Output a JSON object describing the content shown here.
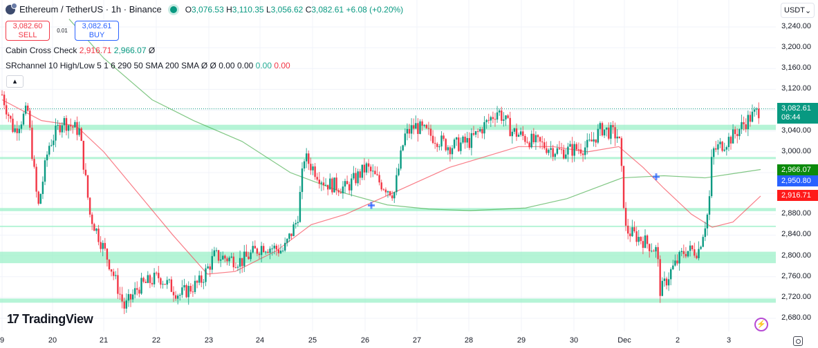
{
  "header": {
    "symbol": "Ethereum / TetherUS · 1h · Binance",
    "ohlc": {
      "open_label": "O",
      "open": "3,076.53",
      "high_label": "H",
      "high": "3,110.35",
      "low_label": "L",
      "low": "3,056.62",
      "close_label": "C",
      "close": "3,082.61",
      "change": "+6.08 (+0.20%)"
    }
  },
  "trade": {
    "sell_price": "3,082.60",
    "sell_label": "SELL",
    "spread": "0.01",
    "buy_price": "3,082.61",
    "buy_label": "BUY"
  },
  "indicators": {
    "cabin": {
      "name": "Cabin Cross Check",
      "v1": "2,916.71",
      "v2": "2,966.07",
      "v3": "Ø"
    },
    "srchannel": {
      "name": "SRchannel 10 High/Low 5 1 6 290 50 SMA 200 SMA",
      "n1": "Ø",
      "n2": "Ø",
      "v1": "0.00",
      "v2": "0.00",
      "v3": "0.00",
      "v4": "0.00"
    }
  },
  "collapse_icon": "▴",
  "currency": {
    "selected": "USDT",
    "icon": "⌄"
  },
  "price_axis": [
    "3,240.00",
    "3,200.00",
    "3,160.00",
    "3,120.00",
    "3,040.00",
    "3,000.00",
    "2,880.00",
    "2,840.00",
    "2,800.00",
    "2,760.00",
    "2,720.00",
    "2,680.00"
  ],
  "price_tags": {
    "last": "3,082.61",
    "countdown": "08:44",
    "sma200": "2,966.07",
    "cross": "2,950.80",
    "sma50": "2,916.71"
  },
  "time_axis": [
    "9",
    "20",
    "21",
    "22",
    "23",
    "24",
    "25",
    "26",
    "27",
    "28",
    "29",
    "30",
    "Dec",
    "2",
    "3"
  ],
  "branding": {
    "logo_text": "TradingView",
    "logo_mark": "17"
  },
  "colors": {
    "up": "#089981",
    "down": "#f23645",
    "sma50": "#f7525f",
    "sma200": "#4caf50",
    "band": "#9cf0c8",
    "cross": "#2962ff"
  },
  "chart_data": {
    "type": "candlestick",
    "symbol": "ETHUSDT",
    "interval": "1h",
    "ylim": [
      2660,
      3260
    ],
    "sr_bands": [
      [
        3052,
        3042
      ],
      [
        2990,
        2986
      ],
      [
        2892,
        2886
      ],
      [
        2858,
        2857
      ],
      [
        2808,
        2786
      ],
      [
        2718,
        2710
      ]
    ],
    "last_price": 3082.61,
    "sma50_last": 2916.71,
    "sma200_last": 2966.07,
    "cross_points": [
      [
        537,
        2897
      ],
      [
        949,
        2952
      ]
    ],
    "price_path": [
      [
        3,
        3110
      ],
      [
        20,
        3040
      ],
      [
        40,
        3080
      ],
      [
        55,
        2890
      ],
      [
        70,
        3010
      ],
      [
        90,
        3060
      ],
      [
        115,
        3040
      ],
      [
        130,
        2880
      ],
      [
        160,
        2780
      ],
      [
        180,
        2700
      ],
      [
        200,
        2740
      ],
      [
        230,
        2760
      ],
      [
        260,
        2725
      ],
      [
        290,
        2750
      ],
      [
        310,
        2800
      ],
      [
        350,
        2790
      ],
      [
        380,
        2820
      ],
      [
        410,
        2810
      ],
      [
        430,
        2870
      ],
      [
        440,
        2990
      ],
      [
        470,
        2940
      ],
      [
        500,
        2930
      ],
      [
        530,
        2970
      ],
      [
        550,
        2940
      ],
      [
        570,
        2920
      ],
      [
        585,
        3030
      ],
      [
        600,
        3050
      ],
      [
        650,
        3010
      ],
      [
        680,
        3020
      ],
      [
        720,
        3080
      ],
      [
        740,
        3040
      ],
      [
        770,
        3020
      ],
      [
        810,
        3000
      ],
      [
        850,
        3010
      ],
      [
        870,
        3045
      ],
      [
        895,
        3030
      ],
      [
        905,
        2850
      ],
      [
        930,
        2830
      ],
      [
        950,
        2810
      ],
      [
        955,
        2730
      ],
      [
        970,
        2770
      ],
      [
        990,
        2810
      ],
      [
        1010,
        2810
      ],
      [
        1025,
        2890
      ],
      [
        1030,
        3000
      ],
      [
        1060,
        3030
      ],
      [
        1080,
        3060
      ],
      [
        1100,
        3082
      ]
    ],
    "sma50_path": [
      [
        3,
        3100
      ],
      [
        60,
        3060
      ],
      [
        110,
        3050
      ],
      [
        150,
        3000
      ],
      [
        200,
        2920
      ],
      [
        250,
        2840
      ],
      [
        300,
        2765
      ],
      [
        340,
        2770
      ],
      [
        400,
        2810
      ],
      [
        450,
        2860
      ],
      [
        500,
        2880
      ],
      [
        550,
        2910
      ],
      [
        600,
        2940
      ],
      [
        650,
        2970
      ],
      [
        700,
        2990
      ],
      [
        750,
        3010
      ],
      [
        800,
        3010
      ],
      [
        850,
        3000
      ],
      [
        895,
        3010
      ],
      [
        930,
        2970
      ],
      [
        960,
        2930
      ],
      [
        1000,
        2880
      ],
      [
        1030,
        2855
      ],
      [
        1060,
        2865
      ],
      [
        1100,
        2915
      ]
    ],
    "sma200_path": [
      [
        100,
        3255
      ],
      [
        150,
        3180
      ],
      [
        220,
        3100
      ],
      [
        280,
        3060
      ],
      [
        350,
        3020
      ],
      [
        420,
        2960
      ],
      [
        500,
        2920
      ],
      [
        560,
        2898
      ],
      [
        620,
        2890
      ],
      [
        680,
        2887
      ],
      [
        760,
        2892
      ],
      [
        820,
        2910
      ],
      [
        870,
        2935
      ],
      [
        900,
        2950
      ],
      [
        960,
        2954
      ],
      [
        1020,
        2950
      ],
      [
        1060,
        2958
      ],
      [
        1100,
        2966
      ]
    ]
  }
}
